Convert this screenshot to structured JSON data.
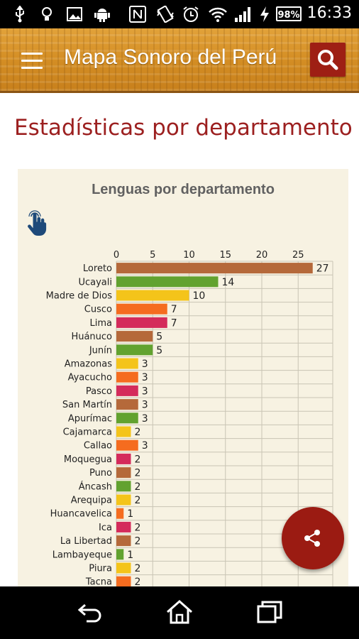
{
  "status_bar": {
    "time": "16:33",
    "battery": "98%",
    "icons": [
      "usb-icon",
      "lightbulb-icon",
      "image-icon",
      "android-icon",
      "nfc-icon",
      "vibrate-icon",
      "alarm-icon",
      "wifi-icon",
      "signal-icon",
      "charging-icon"
    ]
  },
  "app_bar": {
    "title": "Mapa Sonoro del Perú",
    "menu_icon": "hamburger-menu-icon",
    "search_icon": "search-icon",
    "bar_color": "#d8922a",
    "accent": "#9e1f14"
  },
  "page": {
    "heading": "Estadísticas por departamento"
  },
  "chart_data": {
    "type": "bar",
    "orientation": "horizontal",
    "title": "Lenguas por departamento",
    "xlim": [
      0,
      30
    ],
    "xticks": [
      0,
      5,
      10,
      15,
      20,
      25
    ],
    "grid": true,
    "categories": [
      "Loreto",
      "Ucayali",
      "Madre de Dios",
      "Cusco",
      "Lima",
      "Huánuco",
      "Junín",
      "Amazonas",
      "Ayacucho",
      "Pasco",
      "San Martín",
      "Apurímac",
      "Cajamarca",
      "Callao",
      "Moquegua",
      "Puno",
      "Áncash",
      "Arequipa",
      "Huancavelica",
      "Ica",
      "La Libertad",
      "Lambayeque",
      "Piura",
      "Tacna"
    ],
    "values": [
      27,
      14,
      10,
      7,
      7,
      5,
      5,
      3,
      3,
      3,
      3,
      3,
      2,
      3,
      2,
      2,
      2,
      2,
      1,
      2,
      2,
      1,
      2,
      2
    ],
    "colors": [
      "#b5693a",
      "#62a22f",
      "#f4c41a",
      "#f56c1f",
      "#d42b5b",
      "#b5693a",
      "#62a22f",
      "#f4c41a",
      "#f56c1f",
      "#d42b5b",
      "#b5693a",
      "#62a22f",
      "#f4c41a",
      "#f56c1f",
      "#d42b5b",
      "#b5693a",
      "#62a22f",
      "#f4c41a",
      "#f56c1f",
      "#d42b5b",
      "#b5693a",
      "#62a22f",
      "#f4c41a",
      "#f56c1f"
    ],
    "interaction_icon": "touch-hand-icon"
  },
  "fab": {
    "icon": "share-icon",
    "color": "#9b1b12"
  },
  "nav_bar": {
    "icons": [
      "back-icon",
      "home-icon",
      "recents-icon"
    ]
  }
}
